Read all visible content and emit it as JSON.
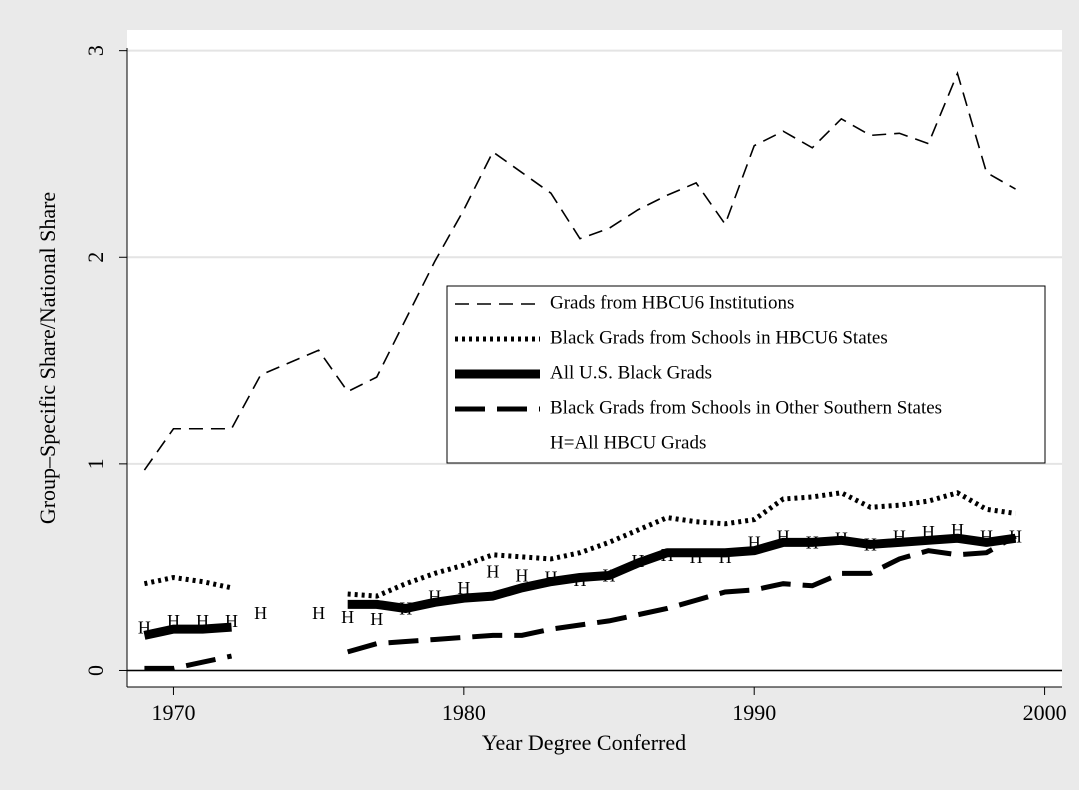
{
  "chart_data": {
    "type": "line",
    "xlabel": "Year Degree Conferred",
    "ylabel": "Group–Specific Share/National Share",
    "x": [
      1969,
      1970,
      1971,
      1972,
      1973,
      1974,
      1975,
      1976,
      1977,
      1978,
      1979,
      1980,
      1981,
      1982,
      1983,
      1984,
      1985,
      1986,
      1987,
      1988,
      1989,
      1990,
      1991,
      1992,
      1993,
      1994,
      1995,
      1996,
      1997,
      1998,
      1999
    ],
    "xlim": [
      1968.4,
      2000.6
    ],
    "xticks": [
      1970,
      1980,
      1990,
      2000
    ],
    "ylim": [
      -0.08,
      3.1
    ],
    "yticks": [
      0,
      1,
      2,
      3
    ],
    "grid": true,
    "reference_line": 0,
    "legend": "center-right",
    "series": [
      {
        "name": "Grads from HBCU6 Institutions",
        "color": "#000000",
        "style": "dashed",
        "values": [
          0.97,
          1.17,
          1.17,
          1.17,
          1.43,
          1.49,
          1.55,
          1.35,
          1.42,
          1.7,
          1.98,
          2.23,
          2.51,
          2.41,
          2.31,
          2.09,
          2.14,
          2.23,
          2.3,
          2.36,
          2.16,
          2.54,
          2.61,
          2.53,
          2.67,
          2.59,
          2.6,
          2.55,
          2.89,
          2.41,
          2.33
        ]
      },
      {
        "name": "Black Grads from Schools in HBCU6 States",
        "color": "#000000",
        "style": "dotted",
        "values": [
          0.42,
          0.45,
          0.43,
          0.4,
          null,
          null,
          null,
          0.37,
          0.36,
          0.42,
          0.47,
          0.51,
          0.56,
          0.55,
          0.54,
          0.57,
          0.62,
          0.68,
          0.74,
          0.72,
          0.71,
          0.73,
          0.83,
          0.84,
          0.86,
          0.79,
          0.8,
          0.82,
          0.86,
          0.78,
          0.76
        ]
      },
      {
        "name": "All U.S. Black Grads",
        "color": "#000000",
        "style": "thick",
        "values": [
          0.17,
          0.2,
          0.2,
          0.21,
          null,
          null,
          null,
          0.32,
          0.32,
          0.3,
          0.33,
          0.35,
          0.36,
          0.4,
          0.43,
          0.45,
          0.46,
          0.52,
          0.57,
          0.57,
          0.57,
          0.58,
          0.62,
          0.62,
          0.63,
          0.61,
          0.62,
          0.63,
          0.64,
          0.62,
          0.64
        ]
      },
      {
        "name": "Black Grads from Schools in Other Southern States",
        "color": "#000000",
        "style": "longdash",
        "values": [
          0.01,
          0.01,
          0.04,
          0.07,
          null,
          null,
          null,
          0.09,
          0.13,
          0.14,
          0.15,
          0.16,
          0.17,
          0.17,
          0.2,
          0.22,
          0.24,
          0.27,
          0.3,
          0.34,
          0.38,
          0.39,
          0.42,
          0.41,
          0.47,
          0.47,
          0.54,
          0.58,
          0.56,
          0.57,
          0.65
        ]
      },
      {
        "name": "H=All HBCU Grads",
        "color": "#000000",
        "style": "marker",
        "marker": "H",
        "values": [
          0.2,
          0.23,
          0.23,
          0.23,
          0.27,
          null,
          0.27,
          0.25,
          0.24,
          0.29,
          0.35,
          0.39,
          0.47,
          0.45,
          0.44,
          0.43,
          0.45,
          0.52,
          0.55,
          0.54,
          0.54,
          0.61,
          0.64,
          0.61,
          0.63,
          0.6,
          0.64,
          0.66,
          0.67,
          0.64,
          0.64
        ]
      }
    ]
  }
}
